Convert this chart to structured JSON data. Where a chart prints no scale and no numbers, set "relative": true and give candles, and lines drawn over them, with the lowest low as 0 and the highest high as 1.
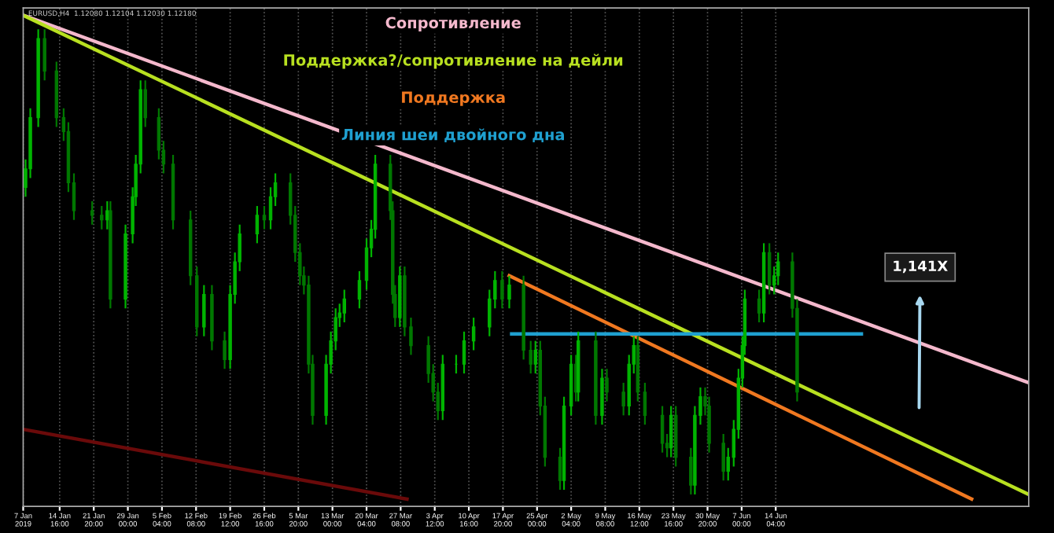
{
  "chart_data": {
    "type": "candlestick",
    "title": "EURUSD,H4  1.12080 1.12104 1.12030 1.12180",
    "relative": true,
    "colors": [
      "#00b400",
      "#00b400",
      "#00b400",
      "#007800",
      "#007800",
      "#007800",
      "#007800",
      "#007800",
      "#007800",
      "#007800",
      "#00b400",
      "#007800",
      "#00b400",
      "#00b400",
      "#00b400",
      "#00b400",
      "#007800",
      "#007800",
      "#007800",
      "#007800",
      "#007800",
      "#007800",
      "#00b400",
      "#007800",
      "#007800",
      "#00b400",
      "#00b400",
      "#00b400",
      "#00b400",
      "#007800",
      "#00b400",
      "#00b400",
      "#007800",
      "#007800",
      "#007800",
      "#007800",
      "#007800",
      "#007800",
      "#00b400",
      "#00b400",
      "#00b400",
      "#00b400",
      "#00b400",
      "#00b400",
      "#00b400",
      "#00b400",
      "#00b400",
      "#007800",
      "#007800",
      "#007800",
      "#00b400",
      "#007800",
      "#007800",
      "#007800",
      "#007800",
      "#007800",
      "#00b400",
      "#00b400",
      "#00b400",
      "#00b400",
      "#00b400",
      "#00b400",
      "#007800",
      "#00b400",
      "#007800",
      "#007800",
      "#00b400",
      "#007800",
      "#007800",
      "#007800",
      "#00b400",
      "#00b400",
      "#007800",
      "#00b400",
      "#007800",
      "#00b400",
      "#007800",
      "#007800",
      "#00b400",
      "#00b400",
      "#007800",
      "#007800",
      "#007800",
      "#007800",
      "#00b400",
      "#007800",
      "#007800",
      "#00b400",
      "#00b400",
      "#007800",
      "#007800",
      "#007800",
      "#00b400",
      "#00b400",
      "#00b400",
      "#00b400",
      "#00b400",
      "#007800",
      "#00b400",
      "#007800",
      "#00b400",
      "#00b400",
      "#007800",
      "#007800"
    ],
    "x": [
      "2019-01-07T12:00",
      "2019-01-08T12:00",
      "2019-01-10T04:00",
      "2019-01-11T12:00",
      "2019-01-14T00:00",
      "2019-01-15T12:00",
      "2019-01-16T12:00",
      "2019-01-17T16:00",
      "2019-01-21T12:00",
      "2019-01-23T12:00",
      "2019-01-24T16:00",
      "2019-01-25T08:00",
      "2019-01-28T12:00",
      "2019-01-30T00:00",
      "2019-01-30T16:00",
      "2019-01-31T16:00",
      "2019-02-01T16:00",
      "2019-02-04T12:00",
      "2019-02-05T12:00",
      "2019-02-07T12:00",
      "2019-02-11T04:00",
      "2019-02-12T12:00",
      "2019-02-14T00:00",
      "2019-02-15T16:00",
      "2019-02-18T08:00",
      "2019-02-19T12:00",
      "2019-02-20T12:00",
      "2019-02-21T12:00",
      "2019-02-25T04:00",
      "2019-02-26T16:00",
      "2019-02-28T00:00",
      "2019-03-01T00:00",
      "2019-03-04T04:00",
      "2019-03-05T04:00",
      "2019-03-06T04:00",
      "2019-03-07T00:00",
      "2019-03-08T00:00",
      "2019-03-08T20:00",
      "2019-03-11T16:00",
      "2019-03-12T16:00",
      "2019-03-13T16:00",
      "2019-03-14T12:00",
      "2019-03-15T12:00",
      "2019-03-18T16:00",
      "2019-03-20T04:00",
      "2019-03-21T04:00",
      "2019-03-22T00:00",
      "2019-03-25T04:00",
      "2019-03-25T16:00",
      "2019-03-26T04:00",
      "2019-03-27T04:00",
      "2019-03-28T04:00",
      "2019-03-29T12:00",
      "2019-04-02T04:00",
      "2019-04-03T04:00",
      "2019-04-04T04:00",
      "2019-04-05T04:00",
      "2019-04-08T00:00",
      "2019-04-09T16:00",
      "2019-04-11T16:00",
      "2019-04-15T00:00",
      "2019-04-16T04:00",
      "2019-04-17T16:00",
      "2019-04-19T04:00",
      "2019-04-22T04:00",
      "2019-04-23T16:00",
      "2019-04-24T16:00",
      "2019-04-25T16:00",
      "2019-04-26T16:00",
      "2019-04-29T20:00",
      "2019-04-30T16:00",
      "2019-05-02T04:00",
      "2019-05-03T04:00",
      "2019-05-03T16:00",
      "2019-05-07T08:00",
      "2019-05-08T16:00",
      "2019-05-09T16:00",
      "2019-05-13T04:00",
      "2019-05-14T08:00",
      "2019-05-15T08:00",
      "2019-05-16T04:00",
      "2019-05-17T16:00",
      "2019-05-21T08:00",
      "2019-05-22T08:00",
      "2019-05-23T04:00",
      "2019-05-24T04:00",
      "2019-05-27T08:00",
      "2019-05-28T04:00",
      "2019-05-29T08:00",
      "2019-05-30T08:00",
      "2019-05-31T04:00",
      "2019-06-03T04:00",
      "2019-06-04T04:00",
      "2019-06-05T08:00",
      "2019-06-06T08:00",
      "2019-06-07T04:00",
      "2019-06-07T16:00",
      "2019-06-10T16:00",
      "2019-06-11T16:00",
      "2019-06-12T20:00",
      "2019-06-13T20:00",
      "2019-06-14T16:00",
      "2019-06-17T16:00",
      "2019-06-18T16:00"
    ],
    "ohlc": [
      [
        0.66,
        0.72,
        0.64,
        0.7
      ],
      [
        0.7,
        0.83,
        0.68,
        0.81
      ],
      [
        0.81,
        1.0,
        0.79,
        0.98
      ],
      [
        0.98,
        1.0,
        0.89,
        0.91
      ],
      [
        0.91,
        0.93,
        0.79,
        0.81
      ],
      [
        0.81,
        0.83,
        0.76,
        0.78
      ],
      [
        0.78,
        0.8,
        0.65,
        0.67
      ],
      [
        0.67,
        0.69,
        0.59,
        0.61
      ],
      [
        0.61,
        0.63,
        0.58,
        0.6
      ],
      [
        0.6,
        0.62,
        0.57,
        0.59
      ],
      [
        0.59,
        0.63,
        0.57,
        0.61
      ],
      [
        0.61,
        0.63,
        0.4,
        0.42
      ],
      [
        0.42,
        0.58,
        0.4,
        0.56
      ],
      [
        0.56,
        0.66,
        0.54,
        0.64
      ],
      [
        0.64,
        0.73,
        0.62,
        0.71
      ],
      [
        0.71,
        0.89,
        0.69,
        0.87
      ],
      [
        0.87,
        0.89,
        0.79,
        0.81
      ],
      [
        0.81,
        0.83,
        0.72,
        0.74
      ],
      [
        0.74,
        0.76,
        0.69,
        0.71
      ],
      [
        0.71,
        0.73,
        0.57,
        0.59
      ],
      [
        0.59,
        0.61,
        0.45,
        0.47
      ],
      [
        0.47,
        0.49,
        0.34,
        0.36
      ],
      [
        0.36,
        0.45,
        0.34,
        0.43
      ],
      [
        0.43,
        0.45,
        0.31,
        0.33
      ],
      [
        0.33,
        0.35,
        0.27,
        0.29
      ],
      [
        0.29,
        0.45,
        0.27,
        0.43
      ],
      [
        0.43,
        0.52,
        0.41,
        0.5
      ],
      [
        0.5,
        0.58,
        0.48,
        0.56
      ],
      [
        0.56,
        0.62,
        0.54,
        0.6
      ],
      [
        0.6,
        0.62,
        0.57,
        0.59
      ],
      [
        0.59,
        0.66,
        0.57,
        0.64
      ],
      [
        0.64,
        0.69,
        0.62,
        0.67
      ],
      [
        0.67,
        0.69,
        0.58,
        0.6
      ],
      [
        0.6,
        0.62,
        0.5,
        0.52
      ],
      [
        0.52,
        0.54,
        0.45,
        0.47
      ],
      [
        0.47,
        0.49,
        0.43,
        0.45
      ],
      [
        0.45,
        0.47,
        0.26,
        0.28
      ],
      [
        0.28,
        0.3,
        0.15,
        0.17
      ],
      [
        0.17,
        0.3,
        0.15,
        0.28
      ],
      [
        0.28,
        0.35,
        0.26,
        0.33
      ],
      [
        0.33,
        0.4,
        0.31,
        0.38
      ],
      [
        0.38,
        0.41,
        0.36,
        0.39
      ],
      [
        0.39,
        0.44,
        0.37,
        0.42
      ],
      [
        0.42,
        0.48,
        0.4,
        0.46
      ],
      [
        0.46,
        0.55,
        0.44,
        0.53
      ],
      [
        0.53,
        0.59,
        0.51,
        0.57
      ],
      [
        0.57,
        0.73,
        0.55,
        0.71
      ],
      [
        0.71,
        0.73,
        0.59,
        0.61
      ],
      [
        0.61,
        0.63,
        0.41,
        0.43
      ],
      [
        0.43,
        0.45,
        0.36,
        0.38
      ],
      [
        0.38,
        0.49,
        0.36,
        0.47
      ],
      [
        0.47,
        0.49,
        0.34,
        0.36
      ],
      [
        0.36,
        0.38,
        0.3,
        0.32
      ],
      [
        0.32,
        0.34,
        0.24,
        0.26
      ],
      [
        0.26,
        0.28,
        0.2,
        0.22
      ],
      [
        0.22,
        0.24,
        0.16,
        0.18
      ],
      [
        0.18,
        0.3,
        0.16,
        0.28
      ],
      [
        0.28,
        0.3,
        0.26,
        0.28
      ],
      [
        0.28,
        0.35,
        0.26,
        0.33
      ],
      [
        0.33,
        0.38,
        0.31,
        0.36
      ],
      [
        0.36,
        0.44,
        0.34,
        0.42
      ],
      [
        0.42,
        0.48,
        0.4,
        0.46
      ],
      [
        0.46,
        0.48,
        0.4,
        0.42
      ],
      [
        0.42,
        0.47,
        0.4,
        0.45
      ],
      [
        0.45,
        0.47,
        0.29,
        0.31
      ],
      [
        0.31,
        0.33,
        0.26,
        0.28
      ],
      [
        0.28,
        0.33,
        0.26,
        0.31
      ],
      [
        0.31,
        0.33,
        0.17,
        0.19
      ],
      [
        0.19,
        0.21,
        0.06,
        0.08
      ],
      [
        0.08,
        0.1,
        0.01,
        0.03
      ],
      [
        0.03,
        0.21,
        0.01,
        0.19
      ],
      [
        0.19,
        0.3,
        0.17,
        0.28
      ],
      [
        0.28,
        0.3,
        0.2,
        0.22
      ],
      [
        0.22,
        0.35,
        0.2,
        0.33
      ],
      [
        0.33,
        0.35,
        0.15,
        0.17
      ],
      [
        0.17,
        0.27,
        0.15,
        0.25
      ],
      [
        0.25,
        0.27,
        0.2,
        0.22
      ],
      [
        0.22,
        0.24,
        0.17,
        0.19
      ],
      [
        0.19,
        0.3,
        0.17,
        0.28
      ],
      [
        0.28,
        0.34,
        0.26,
        0.32
      ],
      [
        0.32,
        0.34,
        0.2,
        0.22
      ],
      [
        0.22,
        0.24,
        0.15,
        0.17
      ],
      [
        0.17,
        0.19,
        0.09,
        0.11
      ],
      [
        0.11,
        0.13,
        0.08,
        0.1
      ],
      [
        0.1,
        0.19,
        0.08,
        0.17
      ],
      [
        0.17,
        0.19,
        0.06,
        0.08
      ],
      [
        0.08,
        0.1,
        0.0,
        0.02
      ],
      [
        0.02,
        0.19,
        0.0,
        0.17
      ],
      [
        0.17,
        0.23,
        0.15,
        0.21
      ],
      [
        0.21,
        0.23,
        0.17,
        0.19
      ],
      [
        0.19,
        0.21,
        0.09,
        0.11
      ],
      [
        0.11,
        0.13,
        0.03,
        0.05
      ],
      [
        0.05,
        0.1,
        0.03,
        0.08
      ],
      [
        0.08,
        0.16,
        0.06,
        0.14
      ],
      [
        0.14,
        0.27,
        0.12,
        0.25
      ],
      [
        0.25,
        0.34,
        0.23,
        0.32
      ],
      [
        0.32,
        0.44,
        0.3,
        0.42
      ],
      [
        0.42,
        0.44,
        0.37,
        0.39
      ],
      [
        0.39,
        0.54,
        0.37,
        0.52
      ],
      [
        0.52,
        0.54,
        0.43,
        0.45
      ],
      [
        0.45,
        0.49,
        0.43,
        0.47
      ],
      [
        0.47,
        0.52,
        0.45,
        0.5
      ],
      [
        0.5,
        0.52,
        0.38,
        0.4
      ],
      [
        0.4,
        0.42,
        0.2,
        0.22
      ]
    ],
    "series": [
      {
        "type": "line",
        "name": "Сопротивление",
        "color": "#f4b8cc",
        "x": [
          "2019-01-07T00:00",
          "2019-08-06T08:00"
        ],
        "values": [
          1.03,
          0.24
        ]
      },
      {
        "type": "line",
        "name": "Поддержка?/сопротивление на дейли",
        "color": "#b8e020",
        "x": [
          "2019-01-07T00:00",
          "2019-08-06T08:00"
        ],
        "values": [
          1.03,
          0.0
        ]
      },
      {
        "type": "line",
        "name": "Поддержка",
        "color": "#f07820",
        "x": [
          "2019-04-19T04:00",
          "2019-07-25T08:00"
        ],
        "values": [
          0.47,
          -0.01
        ]
      },
      {
        "type": "line",
        "name": "Линия шеи двойного дна",
        "color": "#1fa0d0",
        "x": [
          "2019-04-19T16:00",
          "2019-07-02T04:00"
        ],
        "values": [
          0.345,
          0.345
        ]
      },
      {
        "type": "line",
        "color": "#6a0a0a",
        "x": [
          "2019-01-07T00:00",
          "2019-03-28T16:00"
        ],
        "values": [
          0.14,
          -0.01
        ]
      }
    ],
    "annotations": [
      "1,141X"
    ],
    "xlim": [
      "2019-01-07T00:00",
      "2019-08-06T08:00"
    ],
    "xticks": [
      {
        "value": "2019-01-07T00:00",
        "label": "7 Jan 2019"
      },
      {
        "value": "2019-01-14T16:00",
        "label": "14 Jan 16:00"
      },
      {
        "value": "2019-01-21T20:00",
        "label": "21 Jan 20:00"
      },
      {
        "value": "2019-01-29T00:00",
        "label": "29 Jan 00:00"
      },
      {
        "value": "2019-02-05T04:00",
        "label": "5 Feb 04:00"
      },
      {
        "value": "2019-02-12T08:00",
        "label": "12 Feb 08:00"
      },
      {
        "value": "2019-02-19T12:00",
        "label": "19 Feb 12:00"
      },
      {
        "value": "2019-02-26T16:00",
        "label": "26 Feb 16:00"
      },
      {
        "value": "2019-03-05T20:00",
        "label": "5 Mar 20:00"
      },
      {
        "value": "2019-03-13T00:00",
        "label": "13 Mar 00:00"
      },
      {
        "value": "2019-03-20T04:00",
        "label": "20 Mar 04:00"
      },
      {
        "value": "2019-03-27T08:00",
        "label": "27 Mar 08:00"
      },
      {
        "value": "2019-04-03T12:00",
        "label": "3 Apr 12:00"
      },
      {
        "value": "2019-04-10T16:00",
        "label": "10 Apr 16:00"
      },
      {
        "value": "2019-04-17T20:00",
        "label": "17 Apr 20:00"
      },
      {
        "value": "2019-04-25T00:00",
        "label": "25 Apr 00:00"
      },
      {
        "value": "2019-05-02T04:00",
        "label": "2 May 04:00"
      },
      {
        "value": "2019-05-09T08:00",
        "label": "9 May 08:00"
      },
      {
        "value": "2019-05-16T12:00",
        "label": "16 May 12:00"
      },
      {
        "value": "2019-05-23T16:00",
        "label": "23 May 16:00"
      },
      {
        "value": "2019-05-30T20:00",
        "label": "30 May 20:00"
      },
      {
        "value": "2019-06-07T00:00",
        "label": "7 Jun 00:00"
      },
      {
        "value": "2019-06-14T04:00",
        "label": "14 Jun 04:00"
      }
    ],
    "grid": "x",
    "tick_labels": "x"
  }
}
